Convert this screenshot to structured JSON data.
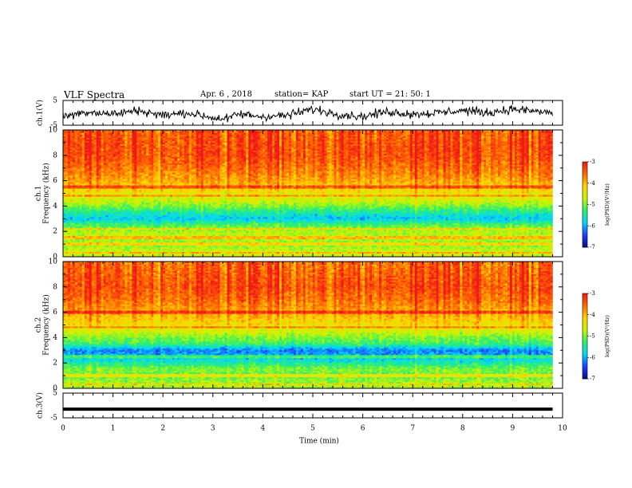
{
  "header": {
    "title": "VLF Spectra",
    "date": "Apr. 6  , 2018",
    "station": "station= KAP",
    "start_ut": "start  UT  =   21: 50: 1"
  },
  "colors": {
    "trace": "#000000",
    "colormap": [
      "#000000",
      "#0a0a8a",
      "#1f3fff",
      "#00d7ff",
      "#2df06a",
      "#c9f500",
      "#ffd400",
      "#ff6a00",
      "#f01818",
      "#ffffff"
    ]
  },
  "chart_data": [
    {
      "type": "line",
      "panel": "ch1-waveform",
      "ylabel": "ch.1(V)",
      "ylim": [
        -5,
        5
      ],
      "yticks": [
        "5",
        "-5"
      ],
      "xlim": [
        0,
        10
      ],
      "x": [
        0,
        0.5,
        1.0,
        1.5,
        2.0,
        2.5,
        3.0,
        3.3,
        3.5,
        4.0,
        4.5,
        5.0,
        5.5,
        6.0,
        6.5,
        7.0,
        7.5,
        8.0,
        8.5,
        9.0,
        9.5,
        9.8
      ],
      "y": [
        -1.5,
        0.5,
        -0.5,
        1.0,
        -1.0,
        0.0,
        -2.0,
        -2.5,
        -0.5,
        -1.5,
        -1.0,
        1.5,
        -0.5,
        -1.5,
        0.5,
        -0.5,
        0.0,
        1.0,
        0.0,
        1.5,
        0.5,
        0.0
      ],
      "noise_amplitude": 1.5
    },
    {
      "type": "heatmap",
      "panel": "ch1-spectrogram",
      "ylabel": "ch.1\nFrequency  (kHz)",
      "ylim": [
        0,
        10
      ],
      "yticks": [
        "0",
        "2",
        "4",
        "6",
        "8",
        "10"
      ],
      "xlim": [
        0,
        10
      ],
      "xmax_data": 9.8,
      "colorbar": {
        "label": "log(PSD)(V²/Hz)",
        "range": [
          -7,
          -3
        ],
        "ticks": [
          "-3",
          "-4",
          "-5",
          "-6",
          "-7"
        ]
      },
      "freq_profile_khz": [
        0,
        0.5,
        1.0,
        1.5,
        2.0,
        2.5,
        3.0,
        3.5,
        4.0,
        4.5,
        5.0,
        5.5,
        6.0,
        7.0,
        8.0,
        9.0,
        10.0
      ],
      "log_psd_profile": [
        -4.6,
        -4.7,
        -5.0,
        -4.7,
        -4.8,
        -5.2,
        -5.9,
        -5.5,
        -5.0,
        -4.6,
        -4.4,
        -4.1,
        -3.9,
        -3.6,
        -3.4,
        -3.4,
        -3.5
      ],
      "narrowband_lines_khz": [
        0.3,
        1.0,
        1.5,
        2.2,
        4.8,
        5.5
      ]
    },
    {
      "type": "heatmap",
      "panel": "ch2-spectrogram",
      "ylabel": "ch.2\nFrequency  (kHz)",
      "ylim": [
        0,
        10
      ],
      "yticks": [
        "0",
        "2",
        "4",
        "6",
        "8",
        "10"
      ],
      "xlim": [
        0,
        10
      ],
      "xmax_data": 9.8,
      "colorbar": {
        "label": "log(PSD)(V²/Hz)",
        "range": [
          -7,
          -3
        ],
        "ticks": [
          "-3",
          "-4",
          "-5",
          "-6",
          "-7"
        ]
      },
      "freq_profile_khz": [
        0,
        0.5,
        1.0,
        1.5,
        2.0,
        2.5,
        3.0,
        3.5,
        4.0,
        4.5,
        5.0,
        5.5,
        6.0,
        7.0,
        8.0,
        9.0,
        10.0
      ],
      "log_psd_profile": [
        -4.8,
        -4.9,
        -5.1,
        -5.0,
        -5.5,
        -6.0,
        -6.2,
        -5.3,
        -5.0,
        -4.6,
        -4.3,
        -4.1,
        -3.9,
        -3.6,
        -3.4,
        -3.5,
        -3.6
      ],
      "narrowband_lines_khz": [
        0.3,
        1.0,
        2.5,
        4.8,
        6.0
      ]
    },
    {
      "type": "line",
      "panel": "ch3-waveform",
      "ylabel": "ch.3(V)",
      "ylim": [
        -5,
        5
      ],
      "yticks": [
        "5",
        "-5"
      ],
      "xlim": [
        0,
        10
      ],
      "x": [
        0,
        9.8
      ],
      "y": [
        -1.5,
        -1.5
      ]
    }
  ],
  "xaxis": {
    "label": "Time  (min)",
    "ticks": [
      "0",
      "1",
      "2",
      "3",
      "4",
      "5",
      "6",
      "7",
      "8",
      "9",
      "10"
    ]
  }
}
